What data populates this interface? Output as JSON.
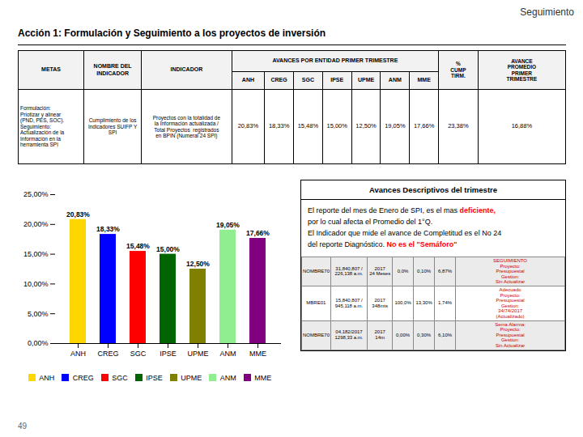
{
  "chart_data": {
    "type": "bar",
    "header": "Seguimiento",
    "title": "Acción 1: Formulación y Seguimiento a los proyectos de inversión",
    "categories": [
      "ANH",
      "CREG",
      "SGC",
      "IPSE",
      "UPME",
      "ANM",
      "MME"
    ],
    "values": [
      20.83,
      18.33,
      15.48,
      15.0,
      12.5,
      19.05,
      17.66
    ],
    "value_labels": [
      "20,83%",
      "18,33%",
      "15,48%",
      "15,00%",
      "12,50%",
      "19,05%",
      "17,66%"
    ],
    "colors": [
      "#FFD700",
      "#0000FF",
      "#FF0000",
      "#006400",
      "#808000",
      "#90EE90",
      "#800080"
    ],
    "ylim": [
      0,
      25
    ],
    "yticks": [
      {
        "value": 0,
        "label": "0,00%"
      },
      {
        "value": 5,
        "label": "5,00%"
      },
      {
        "value": 10,
        "label": "10,00%"
      },
      {
        "value": 15,
        "label": "15,00%"
      },
      {
        "value": 20,
        "label": "20,00%"
      },
      {
        "value": 25,
        "label": "25,00%"
      }
    ],
    "data_labels": true,
    "grid": false,
    "legend": "bottom",
    "background_color": "#FFFFFF",
    "table": {
      "columns": [
        "METAS",
        "NOMBRE DEL\nINDICADOR",
        "INDICADOR"
      ],
      "group": "AVANCES POR ENTIDAD PRIMER TRIMESTRE",
      "end_columns": [
        "%\nCUMP\nTIRM.",
        "AVANCE\nPROMEDIO\nPRIMER\nTRIMESTRE"
      ],
      "cells": [
        "Formulación:\nPriotizar y alinear\n(PND, PES, SOC).\nSeguimiento:\nActualización de la\nInformación en la\nherramienta SPI",
        "Cumplimiento de los\nIndicadores SUIFP Y SPI",
        "Proyectos con la totalidad de\nla Información actualizada /\nTotal Proyectos  registrados\nen BPIN (Numeral 24 SPI)"
      ],
      "end_cells": [
        "23,38%",
        "16,88%"
      ]
    },
    "description": {
      "title": "Avances Descriptivos del trimestre",
      "lines": [
        [
          {
            "text": "El reporte del mes de Enero de SPI, es el mas "
          },
          {
            "text": "deficiente,",
            "color": "red"
          }
        ],
        [
          {
            "text": "por lo cual afecta el Promedio del 1°Q."
          }
        ],
        [
          {
            "text": "El Indicador que mide el avance de Completitud es el No 24"
          }
        ],
        [
          {
            "text": "del reporte Diagnóstico. "
          },
          {
            "text": "No es el \"Semáforo\"",
            "color": "red"
          }
        ]
      ],
      "table": {
        "rows": [
          [
            "NOMBRE70",
            "31,840,807 /\n226,138 a.m.",
            "2017\n24 Meses",
            "0,0%",
            "0,10%",
            "6,87%",
            "SEGUIMIENTO\nProyecto:\nPresupuestal\nGestion:\nSin Actualizar"
          ],
          [
            "MBRE01",
            "15,840,807 /\n945,118 a.m.",
            "2017\n348mts",
            "100,0%",
            "13,30%",
            "1,74%",
            "Adecuado\nProyecto:\nPresupuestal\nGestion:\n34/74/2017\n(Actualizado)"
          ],
          [
            "NOMBRE70",
            "04,182/2017\n1298,33 a.m.",
            "2017\n14m",
            "0,00%",
            "0,30%",
            "6,10%",
            "Sema Alarma:\nProyecto:\nPresupuestal\nGestion:\nSin Actualizar"
          ]
        ],
        "last_column_color": "#CC0000"
      }
    },
    "page_number": "49"
  }
}
